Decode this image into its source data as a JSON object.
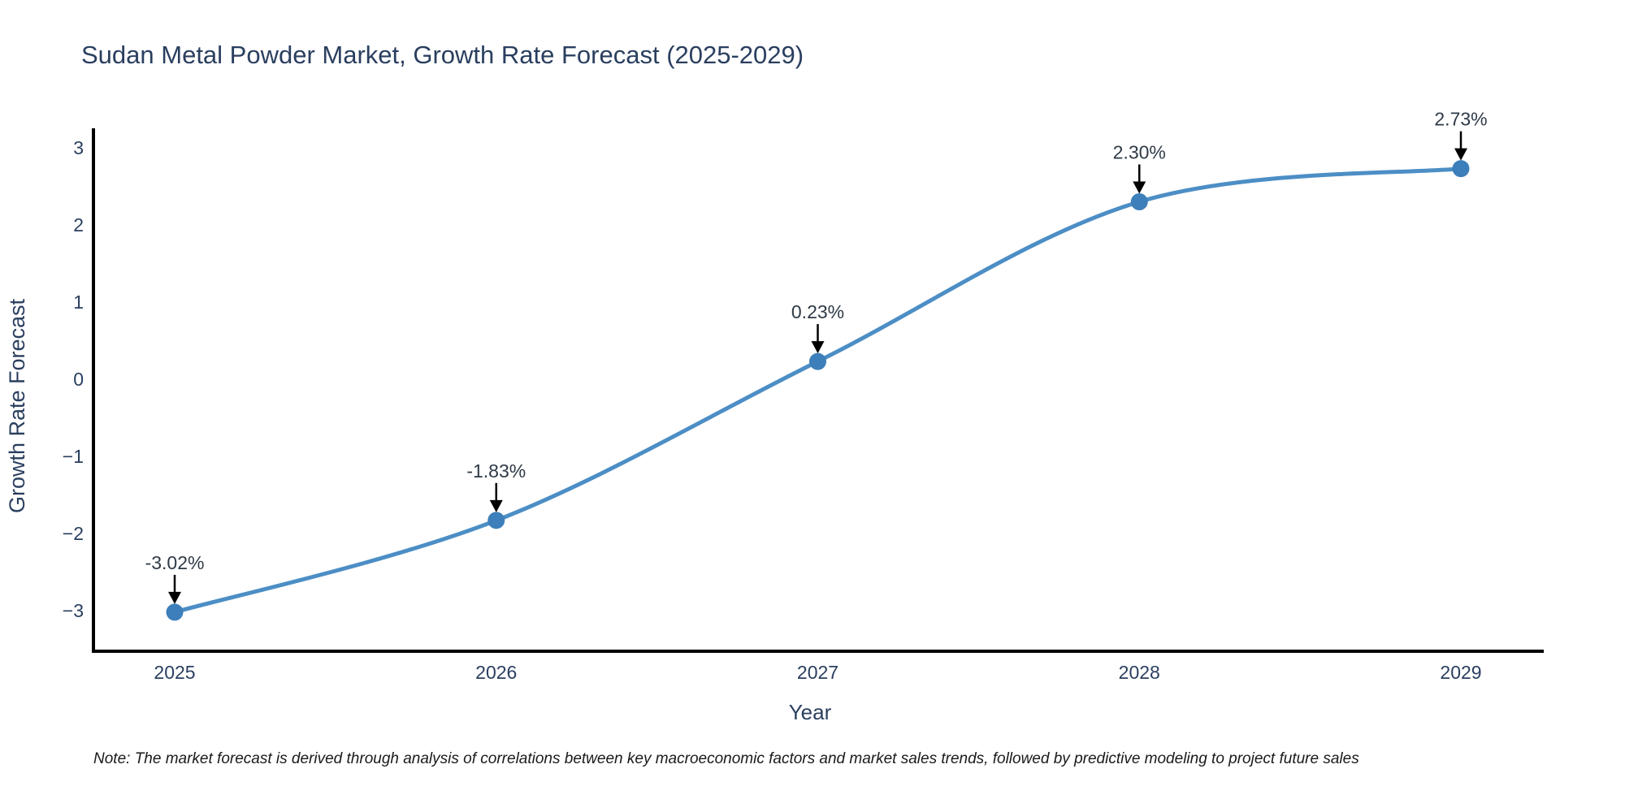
{
  "title": "Sudan Metal Powder Market, Growth Rate Forecast (2025-2029)",
  "note": "Note: The market forecast is derived through analysis of correlations between key macroeconomic factors and market sales trends, followed by predictive modeling to project future sales",
  "chart_data": {
    "type": "line",
    "title": "Sudan Metal Powder Market, Growth Rate Forecast (2025-2029)",
    "xlabel": "Year",
    "ylabel": "Growth Rate Forecast",
    "x": [
      2025,
      2026,
      2027,
      2028,
      2029
    ],
    "series": [
      {
        "name": "Growth Rate Forecast",
        "values": [
          -3.02,
          -1.83,
          0.23,
          2.3,
          2.73
        ]
      }
    ],
    "point_labels": [
      "-3.02%",
      "-1.83%",
      "0.23%",
      "2.30%",
      "2.73%"
    ],
    "yticks": [
      3,
      2,
      1,
      0,
      -1,
      -2,
      -3
    ],
    "ylim": [
      -3.55,
      3.25
    ],
    "grid": false,
    "legend": "none",
    "line_shape": "spline",
    "colors": {
      "line": "#4c8ec5",
      "marker": "#3d7fba",
      "axis": "#000000",
      "arrow": "#000000",
      "text": "#2a3f5f"
    }
  }
}
